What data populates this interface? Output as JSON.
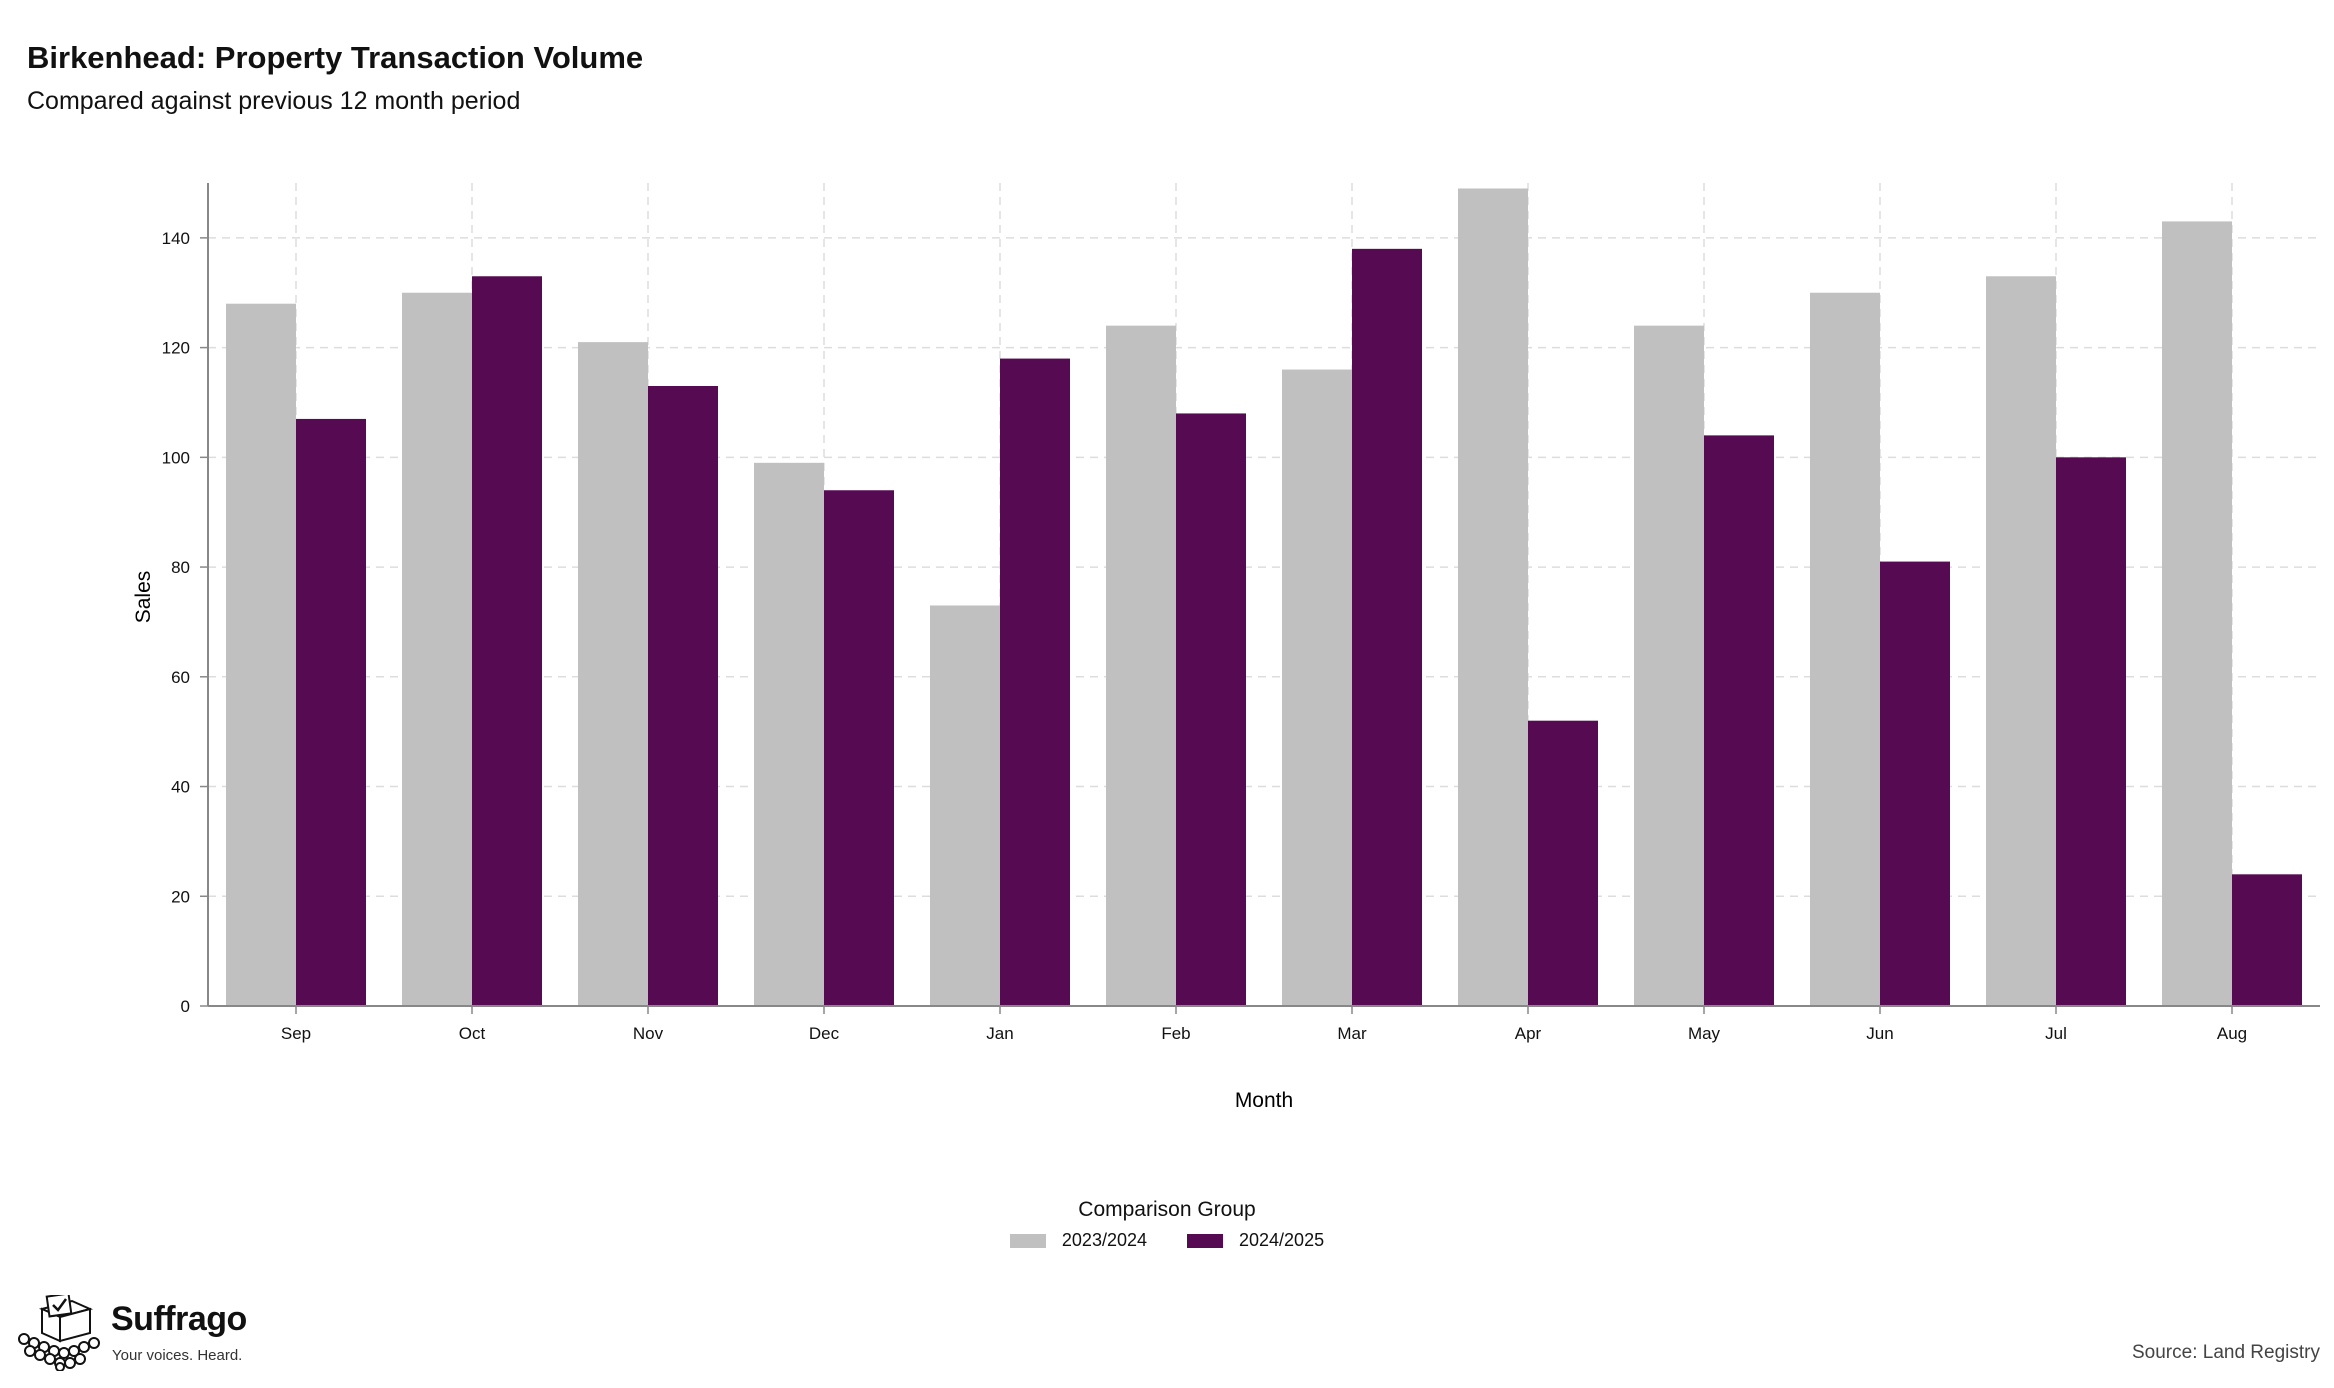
{
  "title": "Birkenhead: Property Transaction Volume",
  "subtitle": "Compared against previous 12 month period",
  "source": "Source: Land Registry",
  "brand": {
    "name": "Suffrago",
    "tagline": "Your voices. Heard.",
    "logo_icon": "ballot-box-icon"
  },
  "colors": {
    "series_a": "#c0c0c0",
    "series_b": "#550a52",
    "grid": "#dddddd",
    "axis": "#888888"
  },
  "chart_data": {
    "type": "bar",
    "title": "Birkenhead: Property Transaction Volume",
    "subtitle": "Compared against previous 12 month period",
    "xlabel": "Month",
    "ylabel": "Sales",
    "ylim": [
      0,
      150
    ],
    "yticks": [
      0,
      20,
      40,
      60,
      80,
      100,
      120,
      140
    ],
    "grid": true,
    "categories": [
      "Sep",
      "Oct",
      "Nov",
      "Dec",
      "Jan",
      "Feb",
      "Mar",
      "Apr",
      "May",
      "Jun",
      "Jul",
      "Aug"
    ],
    "legend": {
      "title": "Comparison Group",
      "placement": "bottom-center"
    },
    "series": [
      {
        "name": "2023/2024",
        "color": "#c0c0c0",
        "values": [
          128,
          130,
          121,
          99,
          73,
          124,
          116,
          149,
          124,
          130,
          133,
          143
        ]
      },
      {
        "name": "2024/2025",
        "color": "#550a52",
        "values": [
          107,
          133,
          113,
          94,
          118,
          108,
          138,
          52,
          104,
          81,
          100,
          24
        ]
      }
    ]
  }
}
